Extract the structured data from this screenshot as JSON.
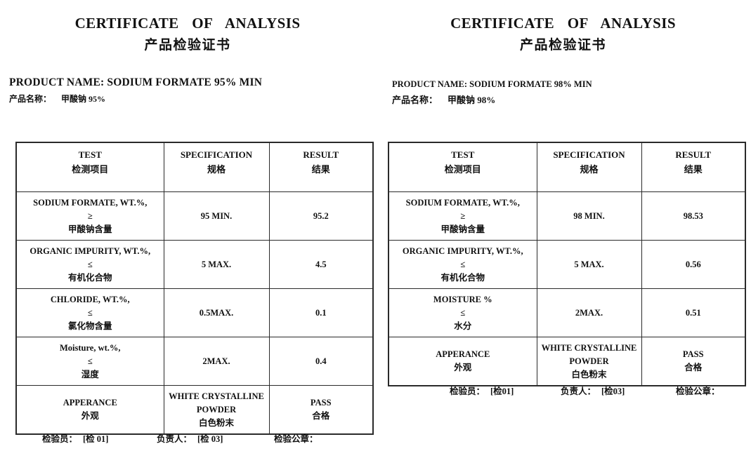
{
  "page": {
    "background_color": "#ffffff",
    "text_color": "#111111",
    "border_color": "#2a2a2a"
  },
  "certificates": [
    {
      "title": "CERTIFICATE OF ANALYSIS",
      "subtitle": "产品检验证书",
      "product_name_en": "PRODUCT NAME: SODIUM FORMATE 95% MIN",
      "product_label_cn": "产品名称：",
      "product_value_cn": "甲酸钠 95%",
      "table": {
        "headers": [
          {
            "en": "TEST",
            "cn": "检测项目"
          },
          {
            "en": "SPECIFICATION",
            "cn": "规格"
          },
          {
            "en": "RESULT",
            "cn": "结果"
          }
        ],
        "rows": [
          {
            "test": [
              "SODIUM FORMATE, WT.%,",
              "≥",
              "甲酸钠含量"
            ],
            "spec": [
              "95 MIN."
            ],
            "result": [
              "95.2"
            ]
          },
          {
            "test": [
              "ORGANIC IMPURITY, WT.%,",
              "≤",
              "有机化合物"
            ],
            "spec": [
              "5 MAX."
            ],
            "result": [
              "4.5"
            ]
          },
          {
            "test": [
              "CHLORIDE, WT.%,",
              "≤",
              "氯化物含量"
            ],
            "spec": [
              "0.5MAX."
            ],
            "result": [
              "0.1"
            ]
          },
          {
            "test": [
              "Moisture, wt.%,",
              "≤",
              "湿度"
            ],
            "spec": [
              "2MAX."
            ],
            "result": [
              "0.4"
            ]
          },
          {
            "test": [
              "APPERANCE",
              "外观"
            ],
            "spec": [
              "WHITE CRYSTALLINE",
              "POWDER",
              "白色粉末"
            ],
            "result": [
              "PASS",
              "合格"
            ]
          }
        ]
      },
      "footer": [
        {
          "label": "检验员：",
          "value": "[检 01]"
        },
        {
          "label": "负责人：",
          "value": "[检 03]"
        },
        {
          "label": "检验公章：",
          "value": ""
        }
      ]
    },
    {
      "title": "CERTIFICATE OF ANALYSIS",
      "subtitle": "产品检验证书",
      "product_name_en": "PRODUCT NAME: SODIUM FORMATE 98% MIN",
      "product_label_cn": "产品名称：",
      "product_value_cn": "甲酸钠 98%",
      "table": {
        "headers": [
          {
            "en": "TEST",
            "cn": "检测项目"
          },
          {
            "en": "SPECIFICATION",
            "cn": "规格"
          },
          {
            "en": "RESULT",
            "cn": "结果"
          }
        ],
        "rows": [
          {
            "test": [
              "SODIUM FORMATE, WT.%,",
              "≥",
              "甲酸钠含量"
            ],
            "spec": [
              "98 MIN."
            ],
            "result": [
              "98.53"
            ]
          },
          {
            "test": [
              "ORGANIC IMPURITY, WT.%,",
              "≤",
              "有机化合物"
            ],
            "spec": [
              "5 MAX."
            ],
            "result": [
              "0.56"
            ]
          },
          {
            "test": [
              "MOISTURE %",
              "≤",
              "水分"
            ],
            "spec": [
              "2MAX."
            ],
            "result": [
              "0.51"
            ]
          },
          {
            "test": [
              "APPERANCE",
              "外观"
            ],
            "spec": [
              "WHITE CRYSTALLINE",
              "POWDER",
              "白色粉末"
            ],
            "result": [
              "PASS",
              "合格"
            ]
          }
        ]
      },
      "footer": [
        {
          "label": "检验员：",
          "value": "[检01]"
        },
        {
          "label": "负责人：",
          "value": "[检03]"
        },
        {
          "label": "检验公章：",
          "value": ""
        }
      ]
    }
  ]
}
